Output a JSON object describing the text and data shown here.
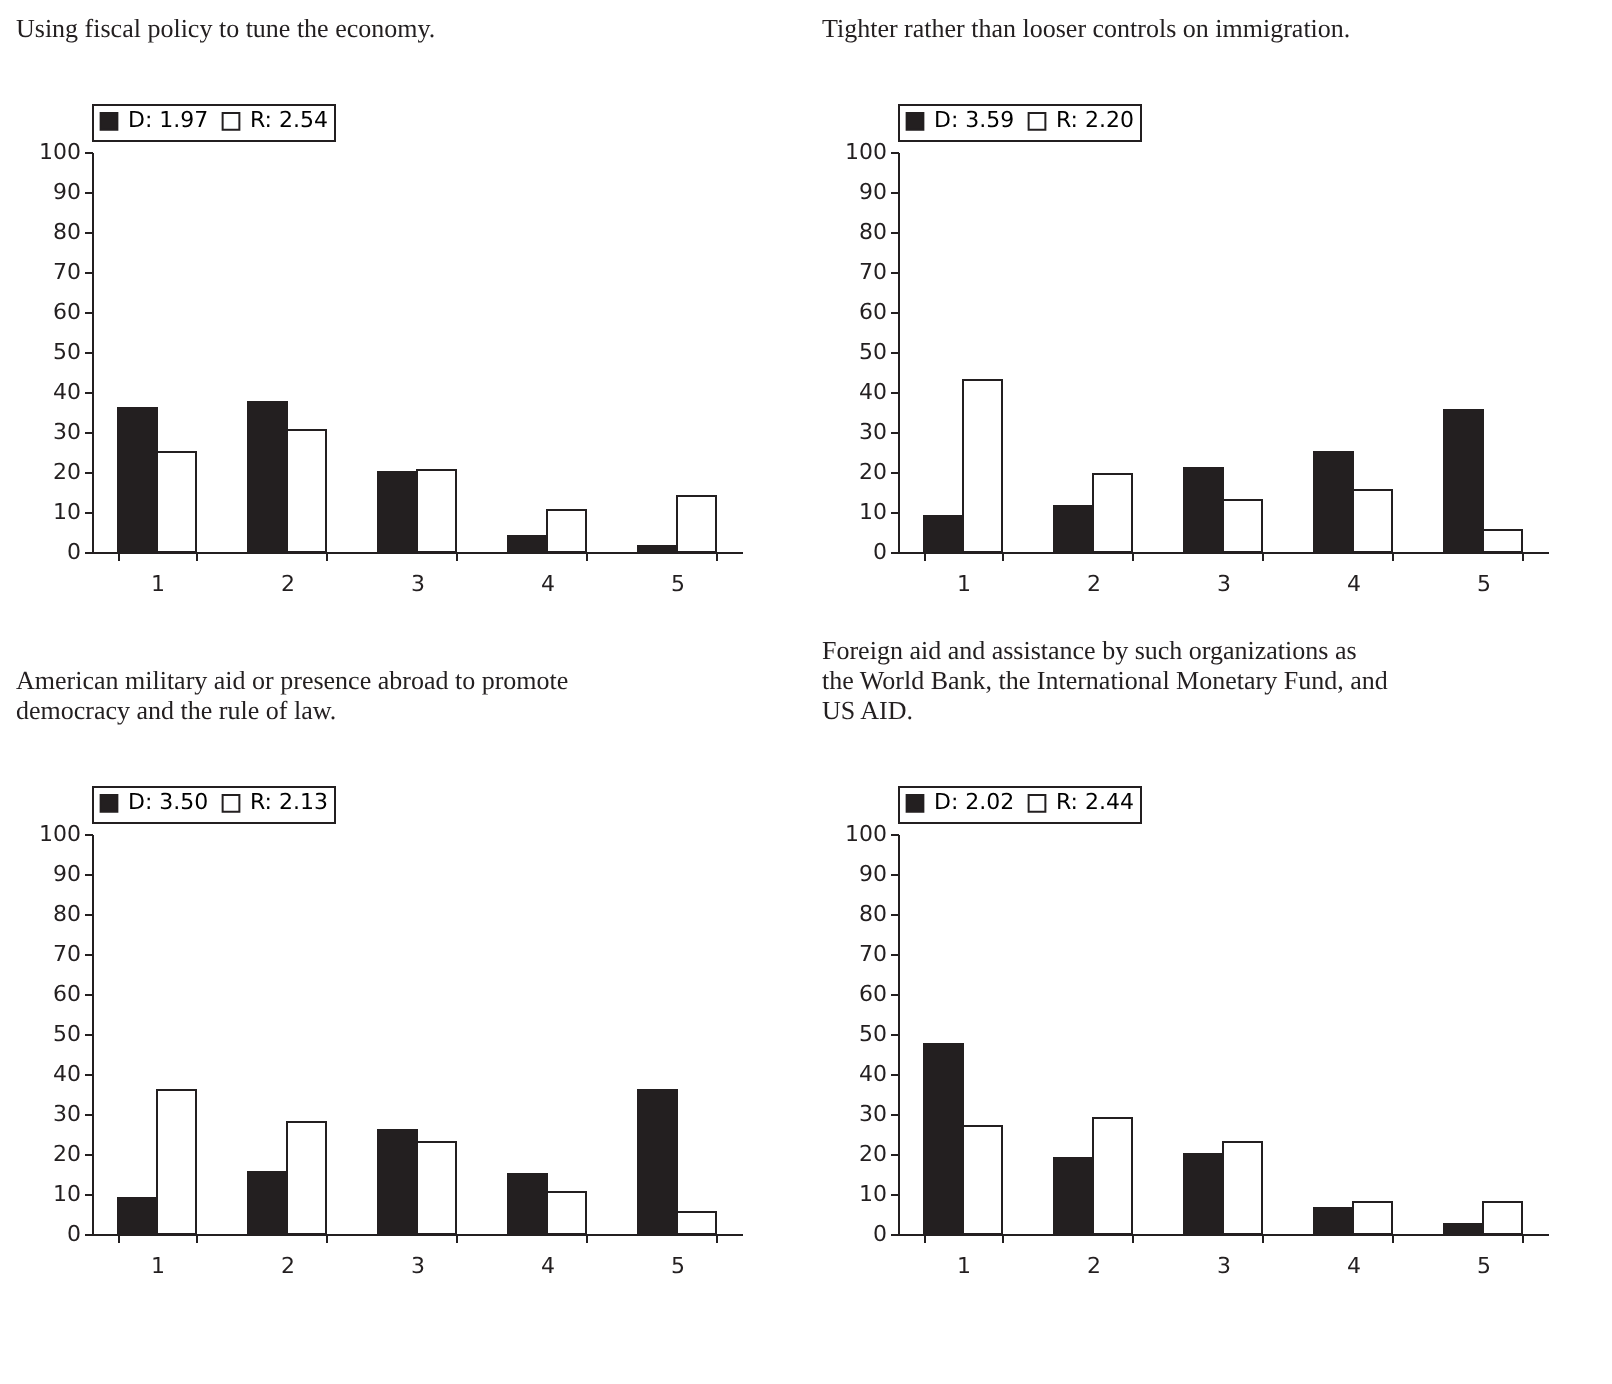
{
  "chart_data": [
    {
      "type": "bar",
      "title": "Using fiscal policy to tune the economy.",
      "categories": [
        "1",
        "2",
        "3",
        "4",
        "5"
      ],
      "series": [
        {
          "name": "D: 1.97",
          "color": "#231f20",
          "values": [
            36,
            37.5,
            20,
            4,
            1.5
          ]
        },
        {
          "name": "R: 2.54",
          "color": "#ffffff",
          "values": [
            25,
            30.5,
            20.5,
            10.5,
            14
          ]
        }
      ],
      "ylim": [
        0,
        100
      ],
      "yticks": [
        0,
        10,
        20,
        30,
        40,
        50,
        60,
        70,
        80,
        90,
        100
      ],
      "grid": false,
      "legend": "top"
    },
    {
      "type": "bar",
      "title": "Tighter rather than looser controls on immigration.",
      "categories": [
        "1",
        "2",
        "3",
        "4",
        "5"
      ],
      "series": [
        {
          "name": "D: 3.59",
          "color": "#231f20",
          "values": [
            9,
            11.5,
            21,
            25,
            35.5
          ]
        },
        {
          "name": "R: 2.20",
          "color": "#ffffff",
          "values": [
            43,
            19.5,
            13,
            15.5,
            5.5
          ]
        }
      ],
      "ylim": [
        0,
        100
      ],
      "yticks": [
        0,
        10,
        20,
        30,
        40,
        50,
        60,
        70,
        80,
        90,
        100
      ],
      "grid": false,
      "legend": "top"
    },
    {
      "type": "bar",
      "title": "American military aid or presence abroad to promote democracy and the rule of law.",
      "categories": [
        "1",
        "2",
        "3",
        "4",
        "5"
      ],
      "series": [
        {
          "name": "D: 3.50",
          "color": "#231f20",
          "values": [
            9,
            15.5,
            26,
            15,
            36
          ]
        },
        {
          "name": "R: 2.13",
          "color": "#ffffff",
          "values": [
            36,
            28,
            23,
            10.5,
            5.5
          ]
        }
      ],
      "ylim": [
        0,
        100
      ],
      "yticks": [
        0,
        10,
        20,
        30,
        40,
        50,
        60,
        70,
        80,
        90,
        100
      ],
      "grid": false,
      "legend": "top"
    },
    {
      "type": "bar",
      "title": "Foreign aid and assistance by such organizations as the World Bank, the International Monetary Fund, and US AID.",
      "categories": [
        "1",
        "2",
        "3",
        "4",
        "5"
      ],
      "series": [
        {
          "name": "D: 2.02",
          "color": "#231f20",
          "values": [
            47.5,
            19,
            20,
            6.5,
            2.5
          ]
        },
        {
          "name": "R: 2.44",
          "color": "#ffffff",
          "values": [
            27,
            29,
            23,
            8,
            8
          ]
        }
      ],
      "ylim": [
        0,
        100
      ],
      "yticks": [
        0,
        10,
        20,
        30,
        40,
        50,
        60,
        70,
        80,
        90,
        100
      ],
      "grid": false,
      "legend": "top"
    }
  ]
}
